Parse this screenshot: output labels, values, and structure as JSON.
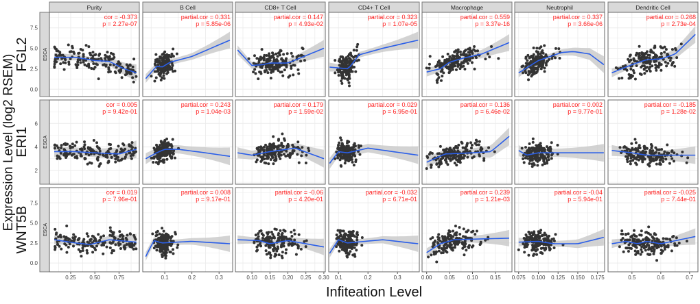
{
  "chart_data": {
    "type": "scatter",
    "xlabel": "Infiteation Level",
    "ylabel": "Expression Level (log2 RSEM)",
    "row_strip": "ESCA",
    "grid": true,
    "colors": {
      "point": "#333333",
      "fit": "#2a5ee8",
      "ci": "#c8c8c8",
      "stats": "#ff2020",
      "strip": "#d9d9d9"
    },
    "columns": [
      {
        "name": "Purity",
        "xlim": [
          0.03,
          0.96
        ],
        "ticks": [
          0.25,
          0.5,
          0.75
        ],
        "tick_labels": [
          "0.25",
          "0.50",
          "0.75"
        ]
      },
      {
        "name": "B Cell",
        "xlim": [
          0.019,
          0.35
        ],
        "ticks": [
          0.1,
          0.2,
          0.3
        ],
        "tick_labels": [
          "0.1",
          "0.2",
          "0.3"
        ]
      },
      {
        "name": "CD8+ T Cell",
        "xlim": [
          0.054,
          0.304
        ],
        "ticks": [
          0.1,
          0.15,
          0.2,
          0.25,
          0.3
        ],
        "tick_labels": [
          "0.10",
          "0.15",
          "0.20",
          "0.25",
          "0.30"
        ]
      },
      {
        "name": "CD4+ T Cell",
        "xlim": [
          0.067,
          0.374
        ],
        "ticks": [
          0.1,
          0.2,
          0.3
        ],
        "tick_labels": [
          "0.1",
          "0.2",
          "0.3"
        ]
      },
      {
        "name": "Macrophage",
        "xlim": [
          -0.01,
          0.186
        ],
        "ticks": [
          0,
          0.05,
          0.1,
          0.15
        ],
        "tick_labels": [
          "0.00",
          "0.05",
          "0.10",
          "0.15"
        ]
      },
      {
        "name": "Neutrophil",
        "xlim": [
          0.07,
          0.184
        ],
        "ticks": [
          0.075,
          0.1,
          0.125,
          0.15,
          0.175
        ],
        "tick_labels": [
          "0.075",
          "0.100",
          "0.125",
          "0.150",
          "0.175"
        ]
      },
      {
        "name": "Dendritic Cell",
        "xlim": [
          0.417,
          0.729
        ],
        "ticks": [
          0.5,
          0.6,
          0.7
        ],
        "tick_labels": [
          "0.5",
          "0.6",
          "0.7"
        ]
      }
    ],
    "rows": [
      {
        "gene": "FGL2",
        "ylim": [
          -0.9,
          9.4
        ],
        "ticks": [
          0,
          2.5,
          5,
          7.5
        ],
        "tick_labels": [
          "0.0",
          "2.5",
          "5.0",
          "7.5"
        ],
        "panels": [
          {
            "cor": "cor = -0.373",
            "p": "p = 2.27e-07",
            "fit": [
              [
                0.08,
                3.9
              ],
              [
                0.3,
                3.9
              ],
              [
                0.5,
                3.5
              ],
              [
                0.65,
                3.4
              ],
              [
                0.8,
                2.5
              ],
              [
                0.93,
                2.0
              ]
            ]
          },
          {
            "cor": "partial.cor = 0.331",
            "p": "p = 5.85e-06",
            "fit": [
              [
                0.03,
                1.3
              ],
              [
                0.07,
                2.8
              ],
              [
                0.09,
                2.7
              ],
              [
                0.12,
                3.3
              ],
              [
                0.2,
                4.0
              ],
              [
                0.34,
                6.0
              ]
            ]
          },
          {
            "cor": "partial.cor = 0.147",
            "p": "p = 4.93e-02",
            "fit": [
              [
                0.06,
                4.8
              ],
              [
                0.1,
                2.9
              ],
              [
                0.13,
                3.0
              ],
              [
                0.15,
                3.2
              ],
              [
                0.2,
                3.2
              ],
              [
                0.3,
                5.0
              ]
            ]
          },
          {
            "cor": "partial.cor = 0.323",
            "p": "p = 1.07e-05",
            "fit": [
              [
                0.07,
                2.7
              ],
              [
                0.13,
                2.5
              ],
              [
                0.14,
                2.8
              ],
              [
                0.17,
                4.2
              ],
              [
                0.25,
                5.0
              ],
              [
                0.37,
                6.0
              ]
            ]
          },
          {
            "cor": "partial.cor = 0.559",
            "p": "p = 3.37e-16",
            "fit": [
              [
                0.0,
                2.1
              ],
              [
                0.03,
                2.5
              ],
              [
                0.05,
                3.3
              ],
              [
                0.08,
                3.8
              ],
              [
                0.12,
                4.3
              ],
              [
                0.18,
                5.7
              ]
            ]
          },
          {
            "cor": "partial.cor = 0.337",
            "p": "p = 3.66e-06",
            "fit": [
              [
                0.075,
                2.0
              ],
              [
                0.1,
                3.5
              ],
              [
                0.13,
                4.5
              ],
              [
                0.145,
                4.6
              ],
              [
                0.165,
                4.3
              ],
              [
                0.183,
                3.0
              ]
            ]
          },
          {
            "cor": "partial.cor = 0.268",
            "p": "p = 2.73e-04",
            "fit": [
              [
                0.43,
                2.0
              ],
              [
                0.5,
                3.0
              ],
              [
                0.55,
                3.6
              ],
              [
                0.6,
                3.7
              ],
              [
                0.65,
                4.3
              ],
              [
                0.72,
                6.7
              ]
            ]
          }
        ]
      },
      {
        "gene": "ERI1",
        "ylim": [
          0.83,
          8.0
        ],
        "ticks": [
          2,
          4,
          6
        ],
        "tick_labels": [
          "2",
          "4",
          "6"
        ],
        "panels": [
          {
            "cor": "cor = 0.005",
            "p": "p = 9.42e-01",
            "fit": [
              [
                0.08,
                3.6
              ],
              [
                0.3,
                3.6
              ],
              [
                0.5,
                3.5
              ],
              [
                0.75,
                3.4
              ],
              [
                0.93,
                3.8
              ]
            ]
          },
          {
            "cor": "partial.cor = 0.243",
            "p": "p = 1.04e-03",
            "fit": [
              [
                0.03,
                3.0
              ],
              [
                0.07,
                3.5
              ],
              [
                0.1,
                3.8
              ],
              [
                0.15,
                3.8
              ],
              [
                0.25,
                3.5
              ],
              [
                0.34,
                3.2
              ]
            ]
          },
          {
            "cor": "partial.cor = 0.179",
            "p": "p = 1.59e-02",
            "fit": [
              [
                0.06,
                3.5
              ],
              [
                0.1,
                3.3
              ],
              [
                0.15,
                3.6
              ],
              [
                0.22,
                3.9
              ],
              [
                0.3,
                3.0
              ]
            ]
          },
          {
            "cor": "partial.cor = 0.029",
            "p": "p = 6.95e-01",
            "fit": [
              [
                0.07,
                2.6
              ],
              [
                0.1,
                3.6
              ],
              [
                0.13,
                3.5
              ],
              [
                0.2,
                3.9
              ],
              [
                0.37,
                3.3
              ]
            ]
          },
          {
            "cor": "partial.cor = 0.136",
            "p": "p = 6.46e-02",
            "fit": [
              [
                0.0,
                2.7
              ],
              [
                0.04,
                3.4
              ],
              [
                0.1,
                3.5
              ],
              [
                0.14,
                3.6
              ],
              [
                0.18,
                4.9
              ]
            ]
          },
          {
            "cor": "partial.cor = 0.002",
            "p": "p = 9.77e-01",
            "fit": [
              [
                0.075,
                3.7
              ],
              [
                0.085,
                3.3
              ],
              [
                0.1,
                3.5
              ],
              [
                0.15,
                3.5
              ],
              [
                0.183,
                3.5
              ]
            ]
          },
          {
            "cor": "partial.cor = -0.185",
            "p": "p = 1.28e-02",
            "fit": [
              [
                0.43,
                3.7
              ],
              [
                0.5,
                3.5
              ],
              [
                0.55,
                3.3
              ],
              [
                0.72,
                3.3
              ]
            ]
          }
        ]
      },
      {
        "gene": "WNT5B",
        "ylim": [
          -1.1,
          9.4
        ],
        "ticks": [
          0,
          2.5,
          5,
          7.5
        ],
        "tick_labels": [
          "0.0",
          "2.5",
          "5.0",
          "7.5"
        ],
        "panels": [
          {
            "cor": "cor = 0.019",
            "p": "p = 7.96e-01",
            "fit": [
              [
                0.08,
                2.9
              ],
              [
                0.3,
                2.5
              ],
              [
                0.45,
                2.3
              ],
              [
                0.65,
                2.9
              ],
              [
                0.93,
                2.6
              ]
            ]
          },
          {
            "cor": "partial.cor = 0.008",
            "p": "p = 9.17e-01",
            "fit": [
              [
                0.03,
                0.8
              ],
              [
                0.06,
                2.8
              ],
              [
                0.09,
                2.5
              ],
              [
                0.2,
                2.7
              ],
              [
                0.34,
                2.4
              ]
            ]
          },
          {
            "cor": "partial.cor = -0.06",
            "p": "p = 4.20e-01",
            "fit": [
              [
                0.06,
                2.9
              ],
              [
                0.12,
                2.8
              ],
              [
                0.15,
                2.4
              ],
              [
                0.2,
                2.8
              ],
              [
                0.3,
                2.0
              ]
            ]
          },
          {
            "cor": "partial.cor = -0.032",
            "p": "p = 6.71e-01",
            "fit": [
              [
                0.07,
                1.2
              ],
              [
                0.1,
                2.9
              ],
              [
                0.13,
                2.5
              ],
              [
                0.25,
                2.9
              ],
              [
                0.37,
                2.4
              ]
            ]
          },
          {
            "cor": "partial.cor = 0.239",
            "p": "p = 1.21e-03",
            "fit": [
              [
                0.0,
                1.3
              ],
              [
                0.03,
                2.4
              ],
              [
                0.06,
                2.9
              ],
              [
                0.12,
                3.0
              ],
              [
                0.18,
                3.1
              ]
            ]
          },
          {
            "cor": "partial.cor = -0.04",
            "p": "p = 5.94e-01",
            "fit": [
              [
                0.075,
                2.6
              ],
              [
                0.1,
                2.7
              ],
              [
                0.12,
                2.4
              ],
              [
                0.15,
                2.4
              ],
              [
                0.183,
                3.2
              ]
            ]
          },
          {
            "cor": "partial.cor = -0.025",
            "p": "p = 7.44e-01",
            "fit": [
              [
                0.43,
                2.4
              ],
              [
                0.48,
                2.7
              ],
              [
                0.52,
                2.4
              ],
              [
                0.55,
                2.7
              ],
              [
                0.6,
                2.4
              ],
              [
                0.72,
                3.3
              ]
            ]
          }
        ]
      }
    ]
  }
}
